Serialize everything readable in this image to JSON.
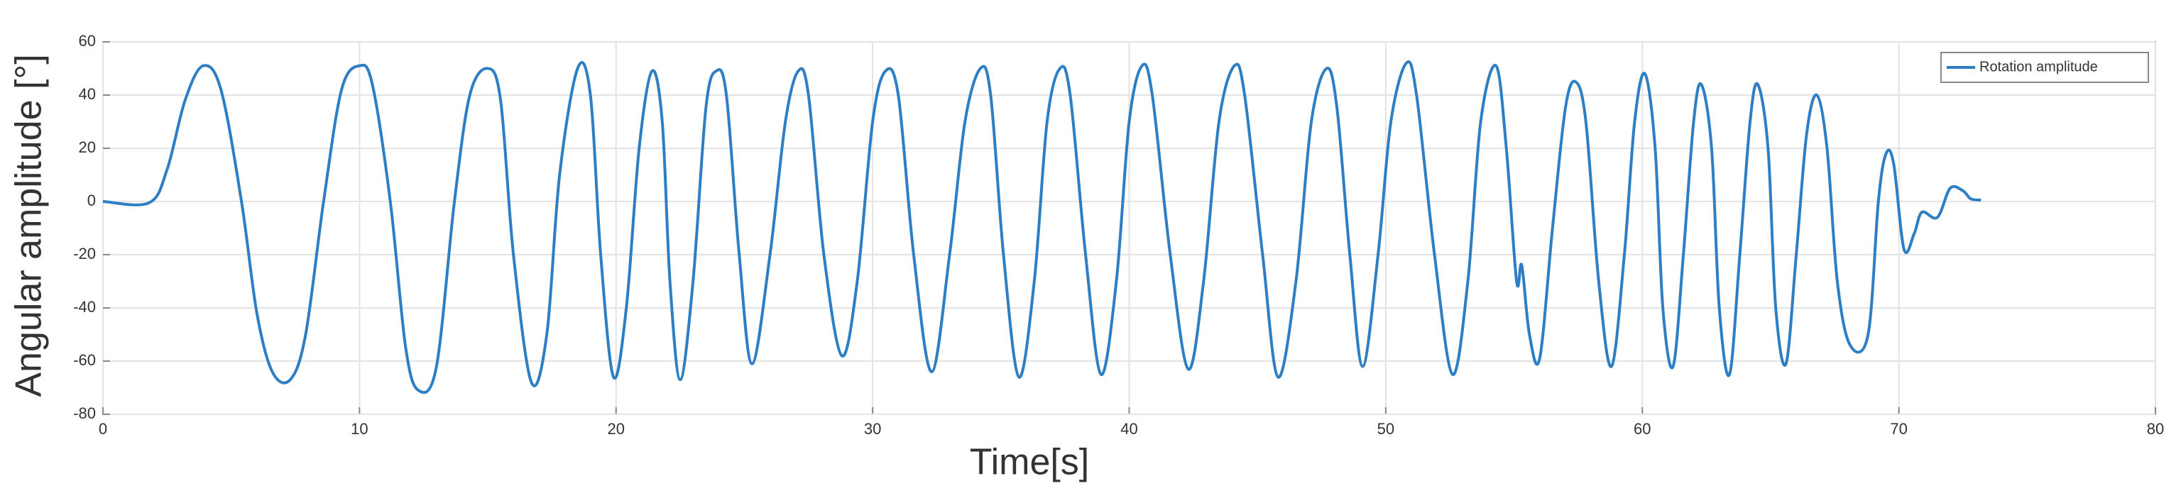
{
  "chart_data": {
    "type": "line",
    "xlabel": "Time[s]",
    "ylabel": "Angular amplitude [°]",
    "xlim": [
      0,
      80
    ],
    "xticks": [
      0,
      10,
      20,
      30,
      40,
      50,
      60,
      70,
      80
    ],
    "ylim": [
      -80,
      60
    ],
    "yticks": [
      -80,
      -60,
      -40,
      -20,
      0,
      20,
      40,
      60
    ],
    "grid": true,
    "legend": "upper right",
    "series": [
      {
        "name": "Rotation amplitude",
        "color": "#2e7ec4",
        "x": [
          0,
          1.8,
          2.5,
          3.2,
          3.9,
          4.6,
          5.4,
          6.0,
          6.6,
          7.3,
          7.9,
          8.6,
          9.3,
          10.0,
          10.5,
          11.2,
          11.8,
          12.3,
          13.0,
          13.7,
          14.3,
          15.0,
          15.5,
          16.0,
          16.7,
          17.3,
          17.8,
          18.5,
          19.0,
          19.4,
          19.9,
          20.4,
          20.9,
          21.4,
          21.8,
          22.1,
          22.5,
          23.0,
          23.5,
          23.9,
          24.3,
          24.8,
          25.3,
          26.0,
          26.6,
          27.1,
          27.5,
          28.1,
          28.8,
          29.4,
          30.0,
          30.5,
          31.0,
          31.6,
          32.3,
          33.0,
          33.6,
          34.2,
          34.6,
          35.1,
          35.7,
          36.3,
          36.8,
          37.3,
          37.7,
          38.3,
          38.9,
          39.5,
          40.0,
          40.5,
          40.9,
          41.6,
          42.3,
          42.9,
          43.5,
          44.1,
          44.5,
          45.2,
          45.8,
          46.5,
          47.1,
          47.7,
          48.1,
          48.6,
          49.1,
          49.7,
          50.2,
          50.8,
          51.2,
          51.9,
          52.6,
          53.2,
          53.7,
          54.3,
          54.7,
          55.1,
          55.3,
          55.6,
          56.0,
          56.5,
          57.0,
          57.4,
          57.8,
          58.3,
          58.8,
          59.3,
          59.7,
          60.1,
          60.5,
          60.8,
          61.2,
          61.6,
          62.0,
          62.3,
          62.7,
          63.0,
          63.4,
          63.8,
          64.2,
          64.5,
          64.9,
          65.2,
          65.6,
          66.0,
          66.4,
          66.8,
          67.2,
          67.6,
          68.1,
          68.8,
          69.2,
          69.5,
          69.8,
          70.2,
          70.6,
          70.9,
          71.5,
          72.0,
          72.5,
          72.8,
          73.2
        ],
        "values": [
          0,
          -0.5,
          12,
          38,
          51,
          42,
          0,
          -42,
          -64,
          -67,
          -50,
          0,
          42,
          51,
          44,
          0,
          -55,
          -71,
          -62,
          0,
          40,
          50,
          38,
          -20,
          -68,
          -50,
          10,
          50,
          40,
          -20,
          -66,
          -40,
          20,
          49,
          30,
          -30,
          -67,
          -30,
          35,
          49,
          40,
          -20,
          -61,
          -20,
          30,
          49,
          40,
          -20,
          -58,
          -30,
          30,
          49,
          40,
          -20,
          -64,
          -20,
          30,
          50,
          40,
          -20,
          -66,
          -30,
          30,
          50,
          40,
          -20,
          -65,
          -30,
          30,
          51,
          40,
          -20,
          -63,
          -30,
          30,
          51,
          40,
          -20,
          -66,
          -30,
          30,
          50,
          35,
          -20,
          -62,
          -20,
          30,
          52,
          40,
          -20,
          -65,
          -30,
          30,
          51,
          20,
          -30,
          -24,
          -50,
          -59,
          -10,
          35,
          45,
          30,
          -30,
          -62,
          -20,
          30,
          48,
          20,
          -40,
          -62,
          -20,
          30,
          44,
          20,
          -40,
          -65,
          -20,
          30,
          44,
          20,
          -40,
          -61,
          -20,
          25,
          40,
          20,
          -30,
          -54,
          -50,
          0,
          18,
          14,
          -18,
          -12,
          -4,
          -6,
          5,
          4,
          1,
          0.5
        ]
      }
    ]
  }
}
